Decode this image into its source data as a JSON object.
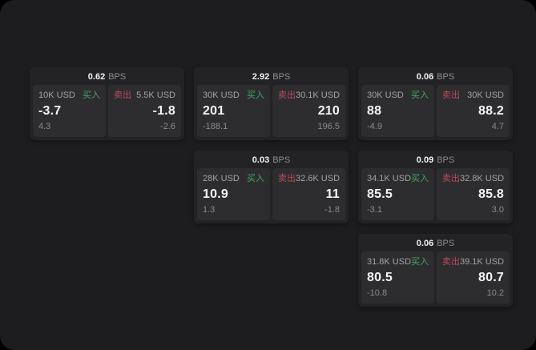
{
  "labels": {
    "buy": "买入",
    "sell": "卖出",
    "bps_suffix": "BPS"
  },
  "colors": {
    "buy_green": "#43a567",
    "sell_red": "#bd4a5f",
    "page_bg": "#1d1d1f",
    "card_bg": "#232325",
    "panel_bg": "#2d2d2f",
    "value_text": "#f5f5f5",
    "muted_text": "#8b8b8e"
  },
  "cards": [
    {
      "bps": "0.62",
      "buy": {
        "amount": "10K USD",
        "value": "-3.7",
        "delta": "4.3"
      },
      "sell": {
        "amount": "5.5K USD",
        "value": "-1.8",
        "delta": "-2.6"
      }
    },
    {
      "bps": "2.92",
      "buy": {
        "amount": "30K USD",
        "value": "201",
        "delta": "-188.1"
      },
      "sell": {
        "amount": "30.1K USD",
        "value": "210",
        "delta": "196.5"
      }
    },
    {
      "bps": "0.06",
      "buy": {
        "amount": "30K USD",
        "value": "88",
        "delta": "-4.9"
      },
      "sell": {
        "amount": "30K USD",
        "value": "88.2",
        "delta": "4.7"
      }
    },
    {
      "bps": "0.03",
      "buy": {
        "amount": "28K USD",
        "value": "10.9",
        "delta": "1.3"
      },
      "sell": {
        "amount": "32.6K USD",
        "value": "11",
        "delta": "-1.8"
      }
    },
    {
      "bps": "0.09",
      "buy": {
        "amount": "34.1K USD",
        "value": "85.5",
        "delta": "-3.1"
      },
      "sell": {
        "amount": "32.8K USD",
        "value": "85.8",
        "delta": "3.0"
      }
    },
    {
      "bps": "0.06",
      "buy": {
        "amount": "31.8K USD",
        "value": "80.5",
        "delta": "-10.8"
      },
      "sell": {
        "amount": "39.1K USD",
        "value": "80.7",
        "delta": "10.2"
      }
    }
  ]
}
